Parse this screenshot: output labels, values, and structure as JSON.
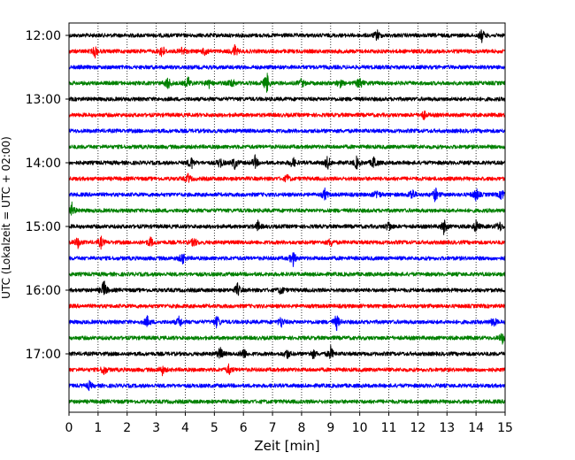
{
  "chart_data": {
    "type": "line",
    "title": "",
    "xlabel": "Zeit  [min]",
    "ylabel": "UTC (Lokalzeit = UTC + 02:00)",
    "xlim": [
      0,
      15
    ],
    "x_ticks": [
      0,
      1,
      2,
      3,
      4,
      5,
      6,
      7,
      8,
      9,
      10,
      11,
      12,
      13,
      14,
      15
    ],
    "x_tick_labels": [
      "0",
      "1",
      "2",
      "3",
      "4",
      "5",
      "6",
      "7",
      "8",
      "9",
      "10",
      "11",
      "12",
      "13",
      "14",
      "15"
    ],
    "y_ticks": [
      "12:00",
      "13:00",
      "14:00",
      "15:00",
      "16:00",
      "17:00"
    ],
    "grid": "vertical dotted lines at each minute",
    "trace_interval_minutes": 15,
    "trace_colors": [
      "#000000",
      "#ff0000",
      "#0000ff",
      "#008000"
    ],
    "traces": [
      {
        "start": "12:00",
        "color": "#000000",
        "bursts": [
          [
            10.6,
            0.45
          ],
          [
            14.2,
            0.5
          ]
        ]
      },
      {
        "start": "12:15",
        "color": "#ff0000",
        "bursts": [
          [
            0.9,
            0.45
          ],
          [
            3.2,
            0.6
          ],
          [
            3.9,
            0.4
          ],
          [
            4.7,
            0.45
          ],
          [
            5.7,
            0.5
          ]
        ]
      },
      {
        "start": "12:30",
        "color": "#0000ff",
        "bursts": []
      },
      {
        "start": "12:45",
        "color": "#008000",
        "bursts": [
          [
            3.4,
            0.55
          ],
          [
            4.1,
            0.5
          ],
          [
            4.8,
            0.4
          ],
          [
            5.6,
            0.4
          ],
          [
            6.8,
            0.95
          ],
          [
            8.0,
            0.35
          ],
          [
            9.3,
            0.4
          ],
          [
            10.0,
            0.55
          ]
        ]
      },
      {
        "start": "13:00",
        "color": "#000000",
        "bursts": []
      },
      {
        "start": "13:15",
        "color": "#ff0000",
        "bursts": [
          [
            12.2,
            0.35
          ]
        ]
      },
      {
        "start": "13:30",
        "color": "#0000ff",
        "bursts": []
      },
      {
        "start": "13:45",
        "color": "#008000",
        "bursts": []
      },
      {
        "start": "14:00",
        "color": "#000000",
        "bursts": [
          [
            4.2,
            0.55
          ],
          [
            5.2,
            0.45
          ],
          [
            5.7,
            0.5
          ],
          [
            6.4,
            0.5
          ],
          [
            7.7,
            0.45
          ],
          [
            8.9,
            0.55
          ],
          [
            9.9,
            0.5
          ],
          [
            10.5,
            0.6
          ]
        ]
      },
      {
        "start": "14:15",
        "color": "#ff0000",
        "bursts": [
          [
            4.1,
            0.35
          ],
          [
            7.5,
            0.3
          ]
        ]
      },
      {
        "start": "14:30",
        "color": "#0000ff",
        "bursts": [
          [
            8.8,
            0.45
          ],
          [
            10.6,
            0.4
          ],
          [
            11.8,
            0.55
          ],
          [
            12.6,
            0.6
          ],
          [
            14.0,
            0.55
          ],
          [
            14.9,
            0.5
          ]
        ]
      },
      {
        "start": "14:45",
        "color": "#008000",
        "bursts": [
          [
            0.1,
            0.55
          ]
        ]
      },
      {
        "start": "15:00",
        "color": "#000000",
        "bursts": [
          [
            6.5,
            0.4
          ],
          [
            11.0,
            0.45
          ],
          [
            12.9,
            0.6
          ],
          [
            14.0,
            0.5
          ],
          [
            14.8,
            0.45
          ]
        ]
      },
      {
        "start": "15:15",
        "color": "#ff0000",
        "bursts": [
          [
            0.3,
            0.45
          ],
          [
            1.1,
            0.45
          ],
          [
            2.8,
            0.4
          ],
          [
            4.3,
            0.4
          ],
          [
            9.0,
            0.35
          ]
        ]
      },
      {
        "start": "15:30",
        "color": "#0000ff",
        "bursts": [
          [
            3.9,
            0.5
          ],
          [
            7.7,
            0.65
          ]
        ]
      },
      {
        "start": "15:45",
        "color": "#008000",
        "bursts": []
      },
      {
        "start": "16:00",
        "color": "#000000",
        "bursts": [
          [
            1.2,
            0.85
          ],
          [
            5.8,
            0.55
          ],
          [
            7.3,
            0.35
          ]
        ]
      },
      {
        "start": "16:15",
        "color": "#ff0000",
        "bursts": []
      },
      {
        "start": "16:30",
        "color": "#0000ff",
        "bursts": [
          [
            2.7,
            0.45
          ],
          [
            3.8,
            0.5
          ],
          [
            5.1,
            0.55
          ],
          [
            7.3,
            0.45
          ],
          [
            9.2,
            0.65
          ],
          [
            14.6,
            0.45
          ]
        ]
      },
      {
        "start": "16:45",
        "color": "#008000",
        "bursts": [
          [
            14.9,
            0.45
          ]
        ]
      },
      {
        "start": "17:00",
        "color": "#000000",
        "bursts": [
          [
            5.2,
            0.55
          ],
          [
            6.0,
            0.5
          ],
          [
            7.5,
            0.4
          ],
          [
            8.4,
            0.35
          ],
          [
            9.0,
            0.55
          ]
        ]
      },
      {
        "start": "17:15",
        "color": "#ff0000",
        "bursts": [
          [
            1.2,
            0.45
          ],
          [
            3.2,
            0.4
          ],
          [
            5.5,
            0.4
          ]
        ]
      },
      {
        "start": "17:30",
        "color": "#0000ff",
        "bursts": [
          [
            0.7,
            0.3
          ]
        ]
      },
      {
        "start": "17:45",
        "color": "#008000",
        "bursts": []
      }
    ]
  }
}
